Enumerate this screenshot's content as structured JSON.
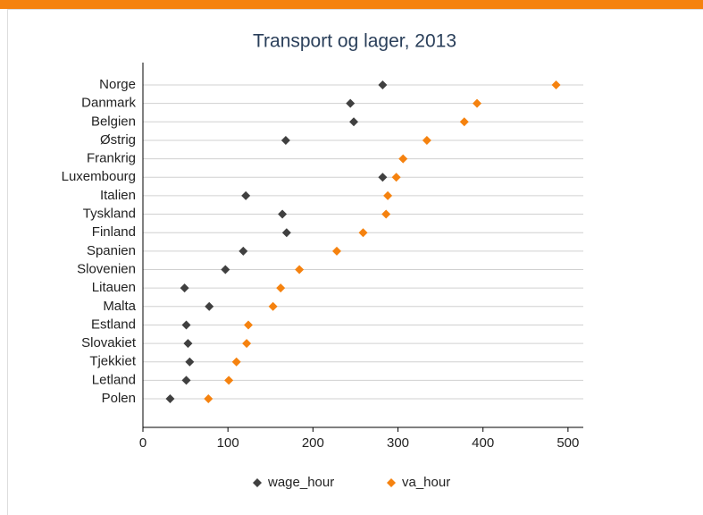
{
  "chart_data": {
    "type": "dot",
    "title": "Transport og lager, 2013",
    "categories": [
      "Norge",
      "Danmark",
      "Belgien",
      "Østrig",
      "Frankrig",
      "Luxembourg",
      "Italien",
      "Tyskland",
      "Finland",
      "Spanien",
      "Slovenien",
      "Litauen",
      "Malta",
      "Estland",
      "Slovakiet",
      "Tjekkiet",
      "Letland",
      "Polen"
    ],
    "series": [
      {
        "name": "wage_hour",
        "color": "#404040",
        "values": [
          282,
          244,
          248,
          168,
          null,
          282,
          121,
          164,
          169,
          118,
          97,
          49,
          78,
          51,
          53,
          55,
          51,
          32
        ]
      },
      {
        "name": "va_hour",
        "color": "#f5820f",
        "values": [
          486,
          393,
          378,
          334,
          306,
          298,
          288,
          286,
          259,
          228,
          184,
          162,
          153,
          124,
          122,
          110,
          101,
          77
        ]
      }
    ],
    "xlim": [
      0,
      518
    ],
    "xticks": [
      0,
      100,
      200,
      300,
      400,
      500
    ],
    "grid": true,
    "legend": "bottom"
  }
}
